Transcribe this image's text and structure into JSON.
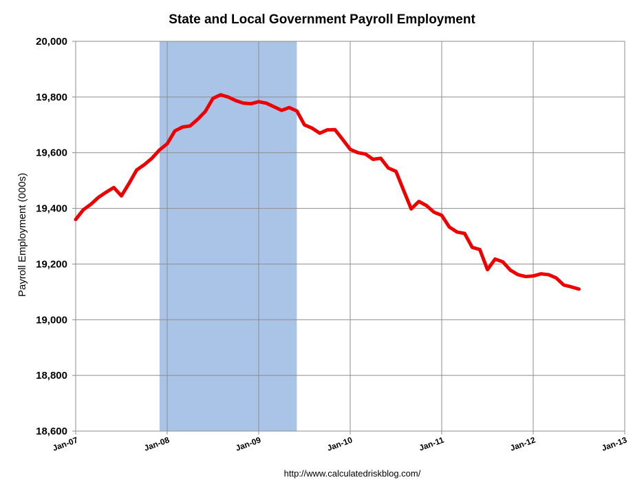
{
  "chart_data": {
    "type": "line",
    "title": "State and Local Government Payroll Employment",
    "xlabel": "",
    "ylabel": "Payroll Employment (000s)",
    "source": "http://www.calculatedriskblog.com/",
    "ylim": [
      18600,
      20000
    ],
    "y_ticks": [
      "20,000",
      "19,800",
      "19,600",
      "19,400",
      "19,200",
      "19,000",
      "18,800",
      "18,600"
    ],
    "y_tick_values": [
      20000,
      19800,
      19600,
      19400,
      19200,
      19000,
      18800,
      18600
    ],
    "x_ticks": [
      "Jan-07",
      "Jan-08",
      "Jan-09",
      "Jan-10",
      "Jan-11",
      "Jan-12",
      "Jan-13"
    ],
    "x_tick_dates": [
      "2007-01",
      "2008-01",
      "2009-01",
      "2010-01",
      "2011-01",
      "2012-01",
      "2013-01"
    ],
    "xlim": [
      "2007-01",
      "2013-01"
    ],
    "grid": true,
    "recession_band": {
      "start": "2007-12",
      "end": "2009-06",
      "color": "#aac4e8"
    },
    "line_color": "#ee0000",
    "series": [
      {
        "dates": [
          "2007-01",
          "2007-02",
          "2007-03",
          "2007-04",
          "2007-05",
          "2007-06",
          "2007-07",
          "2007-08",
          "2007-09",
          "2007-10",
          "2007-11",
          "2007-12",
          "2008-01",
          "2008-02",
          "2008-03",
          "2008-04",
          "2008-05",
          "2008-06",
          "2008-07",
          "2008-08",
          "2008-09",
          "2008-10",
          "2008-11",
          "2008-12",
          "2009-01",
          "2009-02",
          "2009-03",
          "2009-04",
          "2009-05",
          "2009-06",
          "2009-07",
          "2009-08",
          "2009-09",
          "2009-10",
          "2009-11",
          "2009-12",
          "2010-01",
          "2010-02",
          "2010-03",
          "2010-04",
          "2010-05",
          "2010-06",
          "2010-07",
          "2010-08",
          "2010-09",
          "2010-10",
          "2010-11",
          "2010-12",
          "2011-01",
          "2011-02",
          "2011-03",
          "2011-04",
          "2011-05",
          "2011-06",
          "2011-07",
          "2011-08",
          "2011-09",
          "2011-10",
          "2011-11",
          "2011-12",
          "2012-01",
          "2012-02",
          "2012-03",
          "2012-04",
          "2012-05",
          "2012-06",
          "2012-07"
        ],
        "values": [
          19360,
          19395,
          19415,
          19440,
          19458,
          19475,
          19445,
          19490,
          19538,
          19557,
          19580,
          19610,
          19632,
          19678,
          19692,
          19696,
          19720,
          19748,
          19795,
          19808,
          19800,
          19787,
          19778,
          19776,
          19783,
          19778,
          19765,
          19752,
          19762,
          19750,
          19700,
          19688,
          19670,
          19682,
          19683,
          19648,
          19612,
          19600,
          19595,
          19576,
          19580,
          19545,
          19533,
          19465,
          19398,
          19425,
          19410,
          19386,
          19375,
          19333,
          19315,
          19310,
          19260,
          19252,
          19180,
          19218,
          19208,
          19178,
          19162,
          19155,
          19157,
          19165,
          19162,
          19150,
          19125,
          19118,
          19110
        ]
      }
    ]
  }
}
